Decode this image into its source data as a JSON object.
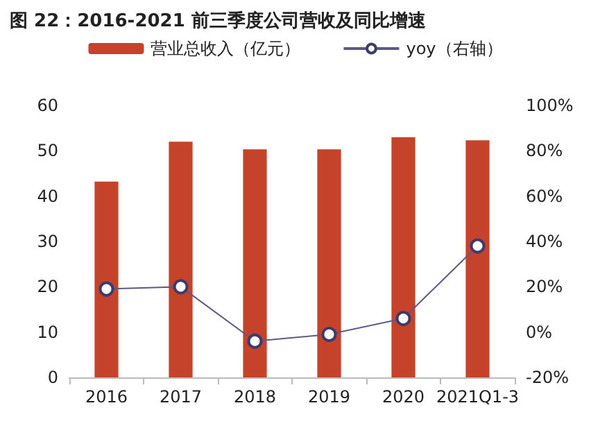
{
  "chart_data": {
    "type": "bar",
    "title": "图 22：2016-2021 前三季度公司营收及同比增速",
    "categories": [
      "2016",
      "2017",
      "2018",
      "2019",
      "2020",
      "2021Q1-3"
    ],
    "series": [
      {
        "name": "营业总收入（亿元）",
        "color": "#c5432a",
        "values": [
          43.2,
          52,
          50.3,
          50.3,
          53,
          52.3
        ]
      },
      {
        "name": "yoy（右轴）",
        "type": "line",
        "axis": "y2",
        "color": "#5c5a85",
        "marker": "circle",
        "values": [
          19,
          20,
          -4,
          -1,
          6,
          38
        ]
      }
    ],
    "ylim": [
      0,
      60
    ],
    "yticks": [
      0,
      10,
      20,
      30,
      40,
      50,
      60
    ],
    "y2lim": [
      -20,
      100
    ],
    "y2ticks": [
      {
        "value": -20,
        "label": "-20%"
      },
      {
        "value": 0,
        "label": "0%"
      },
      {
        "value": 20,
        "label": "20%"
      },
      {
        "value": 40,
        "label": "40%"
      },
      {
        "value": 60,
        "label": "60%"
      },
      {
        "value": 80,
        "label": "80%"
      },
      {
        "value": 100,
        "label": "100%"
      }
    ],
    "grid": false,
    "legend": "top"
  }
}
